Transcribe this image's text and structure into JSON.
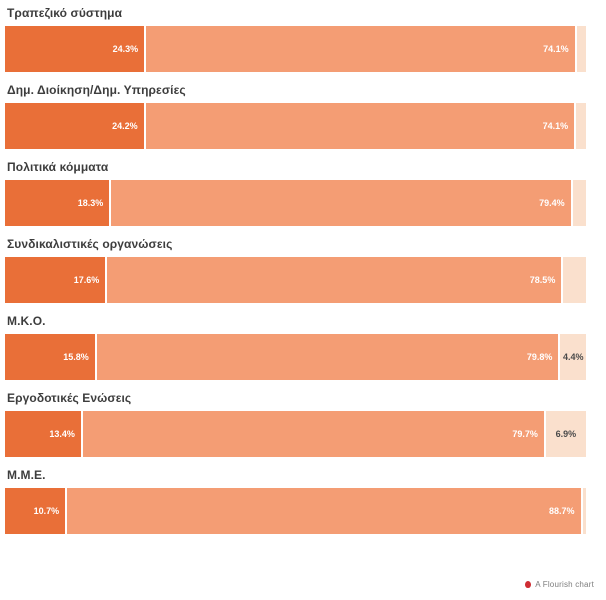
{
  "chart_data": {
    "type": "bar",
    "orientation": "horizontal",
    "stacked": true,
    "xlim": [
      0,
      100
    ],
    "grid": false,
    "legend": "none",
    "title": "",
    "xlabel": "",
    "ylabel": "",
    "categories": [
      "Τραπεζικό σύστημα",
      "Δημ. Διοίκηση/Δημ. Υπηρεσίες",
      "Πολιτικά κόμματα",
      "Συνδικαλιστικές οργανώσεις",
      "Μ.Κ.Ο.",
      "Εργοδοτικές Ενώσεις",
      "Μ.Μ.Ε."
    ],
    "series": [
      {
        "name": "segment-1-dark-orange",
        "color": "#e96f38",
        "values": [
          24.3,
          24.2,
          18.3,
          17.6,
          15.8,
          13.4,
          10.7
        ],
        "labels": [
          "24.3%",
          "24.2%",
          "18.3%",
          "17.6%",
          "15.8%",
          "13.4%",
          "10.7%"
        ]
      },
      {
        "name": "segment-2-medium-orange",
        "color": "#f49d74",
        "values": [
          74.1,
          74.1,
          79.4,
          78.5,
          79.8,
          79.7,
          88.7
        ],
        "labels": [
          "74.1%",
          "74.1%",
          "79.4%",
          "78.5%",
          "79.8%",
          "79.7%",
          "88.7%"
        ]
      },
      {
        "name": "segment-3-pale-orange",
        "color": "#fae0cd",
        "values": [
          1.6,
          1.7,
          2.3,
          3.9,
          4.4,
          6.9,
          0.6
        ],
        "labels": [
          "",
          "",
          "",
          "",
          "4.4%",
          "6.9%",
          ""
        ]
      }
    ]
  },
  "footer": {
    "attribution": "A Flourish chart",
    "logo_color": "#cf2d34"
  }
}
